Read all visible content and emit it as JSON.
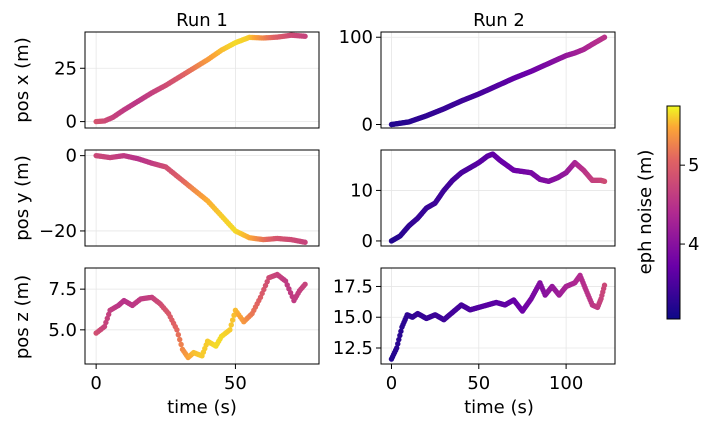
{
  "chart_data": {
    "type": "scatter",
    "grid": true,
    "colormap": "plasma",
    "colorbar": {
      "label": "eph noise (m)",
      "range": [
        3.05,
        5.75
      ],
      "ticks": [
        4,
        5
      ]
    },
    "columns": [
      {
        "title": "Run 1",
        "xlim": [
          -4,
          80
        ],
        "xticks": [
          0,
          50
        ]
      },
      {
        "title": "Run 2",
        "xlim": [
          -6,
          128
        ],
        "xticks": [
          0,
          50,
          100
        ]
      }
    ],
    "xlabel": "time (s)",
    "rows": [
      {
        "ylabel": "pos x (m)"
      },
      {
        "ylabel": "pos y (m)"
      },
      {
        "ylabel": "pos z (m)"
      }
    ],
    "panels": [
      {
        "run": "Run 1",
        "y": "pos x (m)",
        "ylim": [
          -3,
          42
        ],
        "yticks": [
          0,
          25
        ],
        "points": [
          [
            0,
            0,
            4.9
          ],
          [
            3,
            0.3,
            4.8
          ],
          [
            6,
            2,
            4.7
          ],
          [
            10,
            5.5,
            4.6
          ],
          [
            15,
            9.5,
            4.55
          ],
          [
            20,
            13.5,
            4.65
          ],
          [
            25,
            17,
            4.8
          ],
          [
            30,
            21,
            4.95
          ],
          [
            35,
            25,
            5.2
          ],
          [
            40,
            29,
            5.4
          ],
          [
            45,
            33.5,
            5.55
          ],
          [
            50,
            37,
            5.65
          ],
          [
            55,
            39.5,
            5.6
          ],
          [
            60,
            39.2,
            5.3
          ],
          [
            65,
            39.6,
            5.0
          ],
          [
            70,
            40.5,
            4.8
          ],
          [
            75,
            40,
            4.7
          ]
        ]
      },
      {
        "run": "Run 2",
        "y": "pos x (m)",
        "ylim": [
          -4,
          106
        ],
        "yticks": [
          0,
          100
        ],
        "points": [
          [
            0,
            0,
            3.2
          ],
          [
            10,
            3,
            3.25
          ],
          [
            20,
            10,
            3.3
          ],
          [
            30,
            18,
            3.35
          ],
          [
            40,
            27,
            3.4
          ],
          [
            50,
            35,
            3.45
          ],
          [
            60,
            44,
            3.55
          ],
          [
            70,
            53,
            3.65
          ],
          [
            80,
            61,
            3.75
          ],
          [
            90,
            70,
            3.9
          ],
          [
            100,
            79,
            4.1
          ],
          [
            105,
            82,
            4.2
          ],
          [
            110,
            86,
            4.3
          ],
          [
            115,
            92,
            4.4
          ],
          [
            122,
            100,
            4.5
          ]
        ]
      },
      {
        "run": "Run 1",
        "y": "pos y (m)",
        "ylim": [
          -24,
          1.5
        ],
        "yticks": [
          0,
          -20
        ],
        "points": [
          [
            0,
            0,
            4.75
          ],
          [
            5,
            -0.5,
            4.7
          ],
          [
            10,
            0,
            4.6
          ],
          [
            15,
            -0.8,
            4.5
          ],
          [
            20,
            -2,
            4.6
          ],
          [
            25,
            -3,
            4.8
          ],
          [
            30,
            -6,
            5.0
          ],
          [
            35,
            -9,
            5.3
          ],
          [
            40,
            -12,
            5.5
          ],
          [
            45,
            -16,
            5.6
          ],
          [
            50,
            -20,
            5.65
          ],
          [
            55,
            -21.8,
            5.5
          ],
          [
            60,
            -22.3,
            5.2
          ],
          [
            65,
            -22,
            4.9
          ],
          [
            70,
            -22.3,
            4.8
          ],
          [
            75,
            -23,
            4.7
          ]
        ]
      },
      {
        "run": "Run 2",
        "y": "pos y (m)",
        "ylim": [
          -1,
          18
        ],
        "yticks": [
          0,
          10
        ],
        "points": [
          [
            0,
            0,
            3.2
          ],
          [
            5,
            1,
            3.25
          ],
          [
            10,
            3,
            3.3
          ],
          [
            15,
            4.5,
            3.35
          ],
          [
            20,
            6.5,
            3.35
          ],
          [
            25,
            7.5,
            3.4
          ],
          [
            30,
            10,
            3.4
          ],
          [
            35,
            12,
            3.45
          ],
          [
            40,
            13.5,
            3.5
          ],
          [
            45,
            14.5,
            3.5
          ],
          [
            50,
            15.5,
            3.6
          ],
          [
            55,
            16.8,
            3.6
          ],
          [
            58,
            17.2,
            3.65
          ],
          [
            62,
            16,
            3.7
          ],
          [
            70,
            14,
            3.75
          ],
          [
            80,
            13.5,
            3.85
          ],
          [
            85,
            12.2,
            3.9
          ],
          [
            90,
            11.8,
            3.95
          ],
          [
            95,
            12.5,
            4.0
          ],
          [
            100,
            13.5,
            4.1
          ],
          [
            105,
            15.5,
            4.3
          ],
          [
            110,
            14,
            4.5
          ],
          [
            115,
            12,
            4.65
          ],
          [
            120,
            12,
            4.7
          ],
          [
            122,
            11.8,
            4.8
          ]
        ]
      },
      {
        "run": "Run 1",
        "y": "pos z (m)",
        "ylim": [
          2.9,
          8.8
        ],
        "yticks": [
          5.0,
          7.5
        ],
        "points": [
          [
            0,
            4.8,
            4.85
          ],
          [
            3,
            5.2,
            4.7
          ],
          [
            5,
            6.2,
            4.65
          ],
          [
            8,
            6.5,
            4.55
          ],
          [
            10,
            6.8,
            4.5
          ],
          [
            13,
            6.5,
            4.55
          ],
          [
            16,
            6.9,
            4.6
          ],
          [
            20,
            7.0,
            4.65
          ],
          [
            23,
            6.6,
            4.8
          ],
          [
            26,
            6.0,
            4.95
          ],
          [
            29,
            5.0,
            5.1
          ],
          [
            31,
            3.8,
            5.3
          ],
          [
            33,
            3.3,
            5.45
          ],
          [
            35,
            3.6,
            5.55
          ],
          [
            38,
            3.4,
            5.6
          ],
          [
            40,
            4.3,
            5.6
          ],
          [
            43,
            4.0,
            5.65
          ],
          [
            45,
            4.6,
            5.65
          ],
          [
            48,
            5.0,
            5.6
          ],
          [
            50,
            6.2,
            5.55
          ],
          [
            53,
            5.5,
            5.4
          ],
          [
            56,
            6.0,
            5.2
          ],
          [
            59,
            7.0,
            5.0
          ],
          [
            62,
            8.2,
            4.8
          ],
          [
            65,
            8.4,
            4.7
          ],
          [
            68,
            8.0,
            4.6
          ],
          [
            71,
            6.8,
            4.6
          ],
          [
            73,
            7.4,
            4.65
          ],
          [
            75,
            7.8,
            4.7
          ]
        ]
      },
      {
        "run": "Run 2",
        "y": "pos z (m)",
        "ylim": [
          11.2,
          19.0
        ],
        "yticks": [
          12.5,
          15.0,
          17.5
        ],
        "points": [
          [
            0,
            11.6,
            3.2
          ],
          [
            3,
            12.5,
            3.25
          ],
          [
            6,
            14.2,
            3.25
          ],
          [
            9,
            15.2,
            3.3
          ],
          [
            12,
            15.0,
            3.3
          ],
          [
            15,
            15.3,
            3.35
          ],
          [
            20,
            14.9,
            3.35
          ],
          [
            25,
            15.2,
            3.4
          ],
          [
            30,
            14.8,
            3.4
          ],
          [
            35,
            15.4,
            3.45
          ],
          [
            40,
            16.0,
            3.45
          ],
          [
            45,
            15.6,
            3.5
          ],
          [
            50,
            15.8,
            3.55
          ],
          [
            55,
            16.0,
            3.6
          ],
          [
            60,
            16.2,
            3.6
          ],
          [
            65,
            16.0,
            3.65
          ],
          [
            70,
            16.4,
            3.7
          ],
          [
            75,
            15.5,
            3.75
          ],
          [
            80,
            16.5,
            3.85
          ],
          [
            85,
            17.8,
            3.95
          ],
          [
            88,
            16.8,
            4.0
          ],
          [
            92,
            17.5,
            4.1
          ],
          [
            96,
            16.8,
            4.2
          ],
          [
            100,
            17.5,
            4.3
          ],
          [
            105,
            17.8,
            4.35
          ],
          [
            108,
            18.4,
            4.4
          ],
          [
            112,
            17.0,
            4.5
          ],
          [
            115,
            16.0,
            4.55
          ],
          [
            118,
            15.8,
            4.6
          ],
          [
            120,
            16.5,
            4.7
          ],
          [
            122,
            17.6,
            4.75
          ]
        ]
      }
    ]
  }
}
